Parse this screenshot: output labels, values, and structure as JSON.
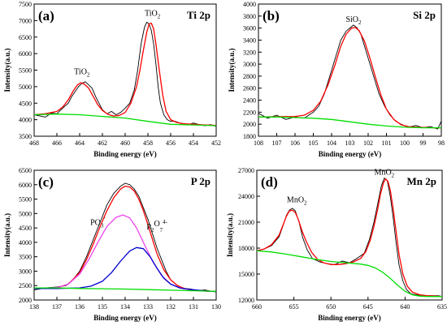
{
  "chart_data": [
    {
      "type": "line",
      "panel_label": "(a)",
      "title": "Ti 2p",
      "xlabel": "Binding energy (eV)",
      "ylabel": "Intensity(a.u.)",
      "xlim": [
        468,
        452
      ],
      "ylim": [
        3500,
        7500
      ],
      "xticks": [
        468,
        466,
        464,
        462,
        460,
        458,
        456,
        454,
        452
      ],
      "yticks": [
        3500,
        4000,
        4500,
        5000,
        5500,
        6000,
        6500,
        7000,
        7500
      ],
      "annotations": [
        {
          "base": "TiO",
          "sub": "2",
          "sup": "",
          "x": 463.8,
          "y": 5380
        },
        {
          "base": "TiO",
          "sub": "2",
          "sup": "",
          "x": 457.6,
          "y": 7150
        }
      ],
      "series": [
        {
          "role": "raw",
          "color": "#000000",
          "x": [
            468,
            467,
            466.5,
            466,
            465.5,
            465,
            464.7,
            464.4,
            464.1,
            463.8,
            463.5,
            463.2,
            462.9,
            462.6,
            462.3,
            462,
            461.6,
            461.2,
            460.8,
            460.4,
            460,
            459.6,
            459.2,
            458.9,
            458.6,
            458.3,
            458.1,
            457.9,
            457.7,
            457.5,
            457.3,
            457.1,
            456.9,
            456.6,
            456.3,
            456,
            455.6,
            455.2,
            454.8,
            454.4,
            454,
            453.5,
            453,
            452.5,
            452
          ],
          "y": [
            4150,
            4080,
            4200,
            4180,
            4350,
            4500,
            4700,
            4850,
            5000,
            5100,
            5150,
            5050,
            4950,
            4700,
            4500,
            4300,
            4180,
            4250,
            4150,
            4220,
            4350,
            4500,
            4900,
            5500,
            6300,
            6800,
            6950,
            6900,
            6700,
            6300,
            5700,
            5000,
            4500,
            4150,
            4000,
            3950,
            3950,
            3900,
            3880,
            3850,
            3900,
            3850,
            3820,
            3850,
            3800
          ]
        },
        {
          "role": "fit",
          "color": "#ff0000",
          "x": [
            468,
            467,
            466,
            465.5,
            465,
            464.6,
            464.2,
            463.9,
            463.6,
            463.2,
            462.8,
            462.4,
            462,
            461.5,
            461,
            460.5,
            460,
            459.5,
            459,
            458.7,
            458.4,
            458.1,
            457.9,
            457.7,
            457.5,
            457.3,
            457,
            456.7,
            456.4,
            456,
            455.5,
            455,
            454,
            453,
            452
          ],
          "y": [
            4150,
            4180,
            4250,
            4380,
            4600,
            4850,
            5050,
            5120,
            5080,
            4950,
            4700,
            4450,
            4280,
            4160,
            4110,
            4130,
            4220,
            4500,
            5000,
            5500,
            6100,
            6650,
            6900,
            6920,
            6750,
            6300,
            5500,
            4750,
            4250,
            4000,
            3920,
            3880,
            3860,
            3840,
            3830
          ]
        },
        {
          "role": "background",
          "color": "#00dd00",
          "x": [
            468,
            466,
            464,
            462,
            460,
            458,
            456,
            454,
            452
          ],
          "y": [
            4150,
            4170,
            4150,
            4100,
            4050,
            3950,
            3860,
            3840,
            3820
          ]
        }
      ]
    },
    {
      "type": "line",
      "panel_label": "(b)",
      "title": "Si 2p",
      "xlabel": "Binding energy (eV)",
      "ylabel": "Intensity(a.u.)",
      "xlim": [
        108,
        98
      ],
      "ylim": [
        1800,
        4000
      ],
      "xticks": [
        108,
        107,
        106,
        105,
        104,
        103,
        102,
        101,
        100,
        99,
        98
      ],
      "yticks": [
        1800,
        2000,
        2200,
        2400,
        2600,
        2800,
        3000,
        3200,
        3400,
        3600,
        3800,
        4000
      ],
      "annotations": [
        {
          "base": "SiO",
          "sub": "2",
          "sup": "",
          "x": 102.8,
          "y": 3700
        }
      ],
      "series": [
        {
          "role": "raw",
          "color": "#000000",
          "x": [
            108,
            107.5,
            107,
            106.5,
            106,
            105.5,
            105,
            104.7,
            104.4,
            104.1,
            103.8,
            103.5,
            103.2,
            103,
            102.8,
            102.6,
            102.4,
            102.2,
            102,
            101.7,
            101.4,
            101.1,
            100.8,
            100.5,
            100.2,
            99.8,
            99.4,
            99,
            98.6,
            98.2,
            98
          ],
          "y": [
            2180,
            2100,
            2150,
            2080,
            2120,
            2100,
            2200,
            2300,
            2500,
            2800,
            3100,
            3400,
            3550,
            3600,
            3650,
            3600,
            3500,
            3300,
            3100,
            2800,
            2500,
            2300,
            2150,
            2050,
            2000,
            1950,
            1980,
            1940,
            1960,
            1920,
            2050
          ]
        },
        {
          "role": "fit",
          "color": "#ff0000",
          "x": [
            108,
            107,
            106,
            105.5,
            105,
            104.6,
            104.2,
            103.8,
            103.5,
            103.2,
            102.9,
            102.7,
            102.5,
            102.2,
            101.9,
            101.6,
            101.3,
            101,
            100.6,
            100.2,
            99.8,
            99.3,
            98.8,
            98.4,
            98
          ],
          "y": [
            2120,
            2125,
            2130,
            2150,
            2230,
            2380,
            2650,
            3000,
            3300,
            3500,
            3600,
            3610,
            3560,
            3380,
            3100,
            2780,
            2480,
            2250,
            2080,
            1990,
            1960,
            1950,
            1945,
            1940,
            1940
          ]
        },
        {
          "role": "background",
          "color": "#00dd00",
          "x": [
            108,
            107,
            106,
            105,
            104,
            103,
            102,
            101,
            100,
            99,
            98
          ],
          "y": [
            2120,
            2120,
            2110,
            2100,
            2080,
            2040,
            2000,
            1970,
            1950,
            1940,
            1940
          ]
        }
      ]
    },
    {
      "type": "line",
      "panel_label": "(c)",
      "title": "P 2p",
      "xlabel": "Binding energy (eV)",
      "ylabel": "Intensity(a.u.)",
      "xlim": [
        138,
        130
      ],
      "ylim": [
        2000,
        6500
      ],
      "xticks": [
        138,
        137,
        136,
        135,
        134,
        133,
        132,
        131,
        130
      ],
      "yticks": [
        2000,
        2500,
        3000,
        3500,
        4000,
        4500,
        5000,
        5500,
        6000,
        6500
      ],
      "annotations": [
        {
          "base": "PO",
          "sub": "3",
          "sup": "-",
          "x": 135.2,
          "y": 4600
        },
        {
          "base": "P",
          "sub": "2",
          "sup": "",
          "x": 132.6,
          "y": 4450,
          "extra": {
            "base": "O",
            "sub": "7",
            "sup": "4-"
          }
        }
      ],
      "series": [
        {
          "role": "raw",
          "color": "#000000",
          "x": [
            138,
            137.5,
            137,
            136.6,
            136.3,
            136,
            135.7,
            135.4,
            135.1,
            134.8,
            134.5,
            134.2,
            134,
            133.8,
            133.6,
            133.4,
            133.2,
            133,
            132.8,
            132.6,
            132.4,
            132.2,
            132,
            131.7,
            131.4,
            131.1,
            130.8,
            130.5,
            130.2,
            130
          ],
          "y": [
            2350,
            2420,
            2450,
            2500,
            2700,
            3000,
            3500,
            4100,
            4700,
            5300,
            5700,
            5950,
            6050,
            6000,
            5850,
            5600,
            5200,
            4800,
            4300,
            3800,
            3400,
            3000,
            2700,
            2500,
            2400,
            2380,
            2320,
            2350,
            2300,
            2280
          ]
        },
        {
          "role": "fit",
          "color": "#ff0000",
          "x": [
            138,
            137,
            136.5,
            136,
            135.7,
            135.4,
            135.1,
            134.8,
            134.5,
            134.2,
            134,
            133.8,
            133.6,
            133.4,
            133.2,
            133,
            132.8,
            132.6,
            132.3,
            132,
            131.7,
            131.4,
            131,
            130.5,
            130
          ],
          "y": [
            2400,
            2420,
            2550,
            2950,
            3400,
            3950,
            4550,
            5100,
            5550,
            5850,
            5950,
            5920,
            5780,
            5500,
            5100,
            4620,
            4100,
            3600,
            3050,
            2700,
            2500,
            2400,
            2340,
            2310,
            2300
          ]
        },
        {
          "role": "component",
          "color": "#ee44ee",
          "x": [
            138,
            137,
            136.5,
            136,
            135.6,
            135.2,
            134.8,
            134.4,
            134.1,
            133.8,
            133.5,
            133.2,
            132.8,
            132.4,
            132,
            131.5,
            131,
            130.5,
            130
          ],
          "y": [
            2400,
            2430,
            2550,
            2900,
            3400,
            4000,
            4550,
            4870,
            4950,
            4850,
            4500,
            4000,
            3350,
            2850,
            2550,
            2400,
            2340,
            2310,
            2300
          ]
        },
        {
          "role": "component",
          "color": "#0000cc",
          "x": [
            138,
            137,
            136,
            135.5,
            135,
            134.6,
            134.2,
            133.8,
            133.5,
            133.2,
            132.9,
            132.6,
            132.3,
            132,
            131.6,
            131.2,
            130.8,
            130.4,
            130
          ],
          "y": [
            2400,
            2400,
            2420,
            2480,
            2650,
            2950,
            3350,
            3700,
            3820,
            3780,
            3500,
            3100,
            2750,
            2550,
            2420,
            2370,
            2340,
            2310,
            2300
          ]
        },
        {
          "role": "background",
          "color": "#00dd00",
          "x": [
            138,
            137,
            136,
            135,
            134,
            133,
            132,
            131,
            130
          ],
          "y": [
            2420,
            2420,
            2400,
            2390,
            2380,
            2360,
            2340,
            2320,
            2300
          ]
        }
      ]
    },
    {
      "type": "line",
      "panel_label": "(d)",
      "title": "Mn 2p",
      "xlabel": "Binding energy (eV)",
      "ylabel": "Intensity(a.u.)",
      "xlim": [
        660,
        635
      ],
      "ylim": [
        12000,
        27000
      ],
      "xticks": [
        660,
        655,
        650,
        645,
        640,
        635
      ],
      "yticks": [
        12000,
        15000,
        18000,
        21000,
        24000,
        27000
      ],
      "annotations": [
        {
          "base": "MnO",
          "sub": "2",
          "sup": "",
          "x": 654.6,
          "y": 23300
        },
        {
          "base": "MnO",
          "sub": "2",
          "sup": "",
          "x": 642.8,
          "y": 26500
        }
      ],
      "series": [
        {
          "role": "raw",
          "color": "#000000",
          "x": [
            660,
            659,
            658,
            657,
            656.5,
            656,
            655.6,
            655.2,
            654.8,
            654.3,
            653.8,
            653.2,
            652.5,
            651.5,
            650.5,
            649.5,
            648.5,
            647.5,
            646.5,
            645.5,
            644.8,
            644.2,
            643.6,
            643.2,
            642.8,
            642.4,
            642,
            641.6,
            641.2,
            640.8,
            640.3,
            639.8,
            639.2,
            638.5,
            637.5,
            636.5,
            635.5,
            635
          ],
          "y": [
            17700,
            17900,
            18300,
            19300,
            20500,
            21800,
            22400,
            22600,
            22300,
            21000,
            19200,
            17800,
            16800,
            16400,
            16200,
            16100,
            16500,
            16300,
            16800,
            17400,
            19000,
            21000,
            23500,
            25200,
            26100,
            25800,
            24000,
            21500,
            18500,
            16000,
            14200,
            13200,
            12700,
            12600,
            12500,
            12500,
            12500,
            12400
          ]
        },
        {
          "role": "fit",
          "color": "#ff0000",
          "x": [
            660,
            659,
            658,
            657,
            656.5,
            656,
            655.6,
            655.2,
            654.8,
            654.4,
            653.9,
            653.3,
            652.6,
            651.8,
            651,
            650,
            649,
            648,
            647,
            646,
            645.3,
            644.7,
            644.2,
            643.7,
            643.3,
            642.9,
            642.6,
            642.3,
            642,
            641.6,
            641.2,
            640.8,
            640.3,
            639.7,
            639,
            638,
            637,
            636,
            635
          ],
          "y": [
            17700,
            17900,
            18400,
            19500,
            20600,
            21700,
            22300,
            22400,
            22100,
            21300,
            20000,
            18700,
            17500,
            16700,
            16300,
            16100,
            16100,
            16200,
            16400,
            16800,
            17600,
            18900,
            20500,
            22500,
            24300,
            25600,
            26000,
            25700,
            24700,
            22500,
            19800,
            17200,
            15000,
            13600,
            12900,
            12600,
            12500,
            12450,
            12400
          ]
        },
        {
          "role": "background",
          "color": "#00dd00",
          "x": [
            660,
            658,
            656,
            654,
            652,
            650,
            648,
            646,
            645,
            644,
            643,
            642,
            641,
            640,
            639,
            638,
            637,
            636,
            635
          ],
          "y": [
            17700,
            17550,
            17300,
            17000,
            16700,
            16450,
            16300,
            16150,
            16000,
            15700,
            15200,
            14500,
            13700,
            13000,
            12600,
            12450,
            12400,
            12400,
            12400
          ]
        }
      ]
    }
  ]
}
